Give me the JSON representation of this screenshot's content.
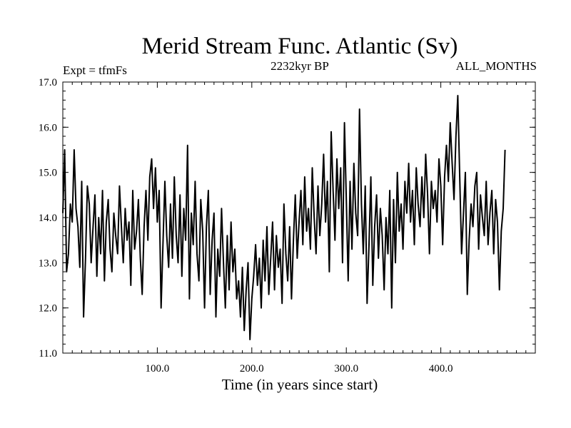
{
  "chart_data": {
    "type": "line",
    "title": "Merid Stream Func. Atlantic (Sv)",
    "subtitle_left": "Expt = tfmFs",
    "subtitle_center": "2232kyr BP",
    "subtitle_right": "ALL_MONTHS",
    "xlabel": "Time (in years since start)",
    "ylabel": "",
    "xlim": [
      0,
      500
    ],
    "ylim": [
      11.0,
      17.0
    ],
    "x_ticks": [
      100,
      200,
      300,
      400
    ],
    "x_tick_labels": [
      "100.0",
      "200.0",
      "300.0",
      "400.0"
    ],
    "y_ticks": [
      11,
      12,
      13,
      14,
      15,
      16,
      17
    ],
    "y_tick_labels": [
      "11.0",
      "12.0",
      "13.0",
      "14.0",
      "15.0",
      "16.0",
      "17.0"
    ],
    "series": [
      {
        "name": "Merid Stream Func. Atlantic",
        "x_start": 0,
        "x_step": 2,
        "values": [
          14.1,
          15.5,
          12.8,
          13.2,
          14.3,
          13.9,
          15.5,
          14.2,
          13.8,
          12.9,
          14.8,
          11.8,
          13.1,
          14.7,
          14.3,
          13.0,
          13.8,
          14.5,
          12.7,
          14.0,
          13.2,
          14.6,
          12.6,
          13.9,
          14.4,
          13.3,
          12.8,
          14.1,
          13.6,
          13.2,
          14.7,
          13.8,
          13.0,
          14.2,
          13.5,
          13.9,
          12.5,
          14.6,
          13.3,
          13.7,
          14.4,
          13.1,
          12.3,
          13.8,
          14.6,
          13.5,
          14.9,
          15.3,
          14.2,
          15.1,
          13.9,
          14.6,
          12.0,
          13.4,
          14.8,
          13.6,
          12.9,
          14.3,
          13.1,
          14.9,
          13.6,
          13.0,
          14.5,
          12.7,
          14.2,
          13.5,
          15.6,
          12.2,
          14.1,
          13.4,
          14.8,
          13.2,
          12.6,
          14.4,
          13.7,
          12.0,
          13.8,
          14.6,
          12.3,
          13.5,
          14.1,
          11.8,
          13.3,
          12.7,
          14.2,
          13.0,
          12.0,
          13.6,
          12.4,
          13.9,
          12.8,
          13.3,
          12.2,
          12.6,
          11.8,
          12.9,
          11.5,
          12.4,
          13.0,
          11.3,
          12.2,
          12.7,
          13.4,
          12.5,
          13.1,
          12.0,
          13.5,
          12.6,
          13.8,
          12.3,
          13.1,
          13.9,
          12.4,
          13.6,
          12.9,
          13.3,
          12.1,
          14.3,
          13.2,
          12.6,
          13.8,
          12.2,
          13.5,
          14.5,
          13.1,
          13.9,
          14.6,
          13.4,
          14.9,
          13.7,
          14.2,
          13.3,
          15.1,
          14.0,
          13.2,
          14.7,
          13.6,
          14.3,
          15.4,
          13.9,
          14.8,
          12.8,
          15.9,
          14.6,
          13.5,
          15.3,
          14.2,
          15.1,
          13.0,
          16.1,
          14.4,
          12.6,
          14.8,
          13.3,
          15.2,
          14.1,
          13.6,
          16.4,
          14.3,
          13.2,
          14.7,
          12.1,
          13.4,
          14.9,
          12.5,
          13.8,
          14.5,
          13.1,
          14.2,
          13.6,
          12.4,
          14.0,
          13.2,
          14.6,
          12.0,
          14.4,
          13.0,
          15.0,
          13.7,
          14.3,
          13.3,
          14.8,
          14.1,
          15.2,
          13.9,
          14.6,
          13.4,
          15.1,
          14.3,
          13.8,
          14.9,
          14.0,
          15.4,
          14.5,
          13.2,
          14.8,
          14.2,
          14.6,
          13.9,
          15.3,
          14.7,
          13.4,
          14.9,
          15.6,
          14.8,
          16.1,
          15.2,
          14.4,
          15.8,
          16.7,
          14.9,
          13.2,
          14.1,
          15.0,
          12.3,
          13.5,
          14.3,
          13.8,
          14.7,
          15.0,
          13.3,
          14.5,
          14.0,
          13.6,
          14.8,
          13.4,
          14.1,
          14.6,
          13.2,
          14.4,
          13.9,
          12.4,
          13.7,
          14.2,
          15.5
        ]
      }
    ]
  }
}
